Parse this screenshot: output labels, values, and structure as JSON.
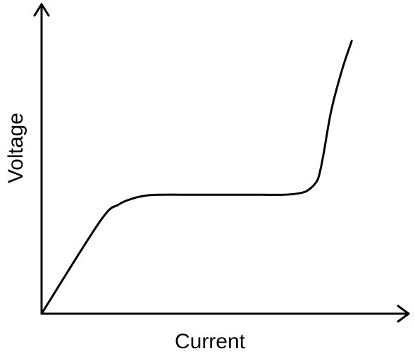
{
  "chart_data": {
    "type": "line",
    "title": "",
    "xlabel": "Current",
    "ylabel": "Voltage",
    "grid": false,
    "legend": "none",
    "axis_ticks": "none",
    "xlim": [
      0,
      100
    ],
    "ylim": [
      0,
      100
    ],
    "series": [
      {
        "color": "#000000",
        "x": [
          0,
          16,
          21,
          25,
          28,
          32,
          45,
          60,
          66,
          70,
          72.5,
          75,
          76,
          77,
          79,
          82,
          84.5
        ],
        "y": [
          0,
          34,
          40,
          42.3,
          43.2,
          43.6,
          43.6,
          43.6,
          43.6,
          44.1,
          45.2,
          48.6,
          53,
          60,
          75,
          90,
          100
        ]
      }
    ]
  },
  "colors": {
    "background": "#ffffff",
    "ink": "#000000"
  }
}
